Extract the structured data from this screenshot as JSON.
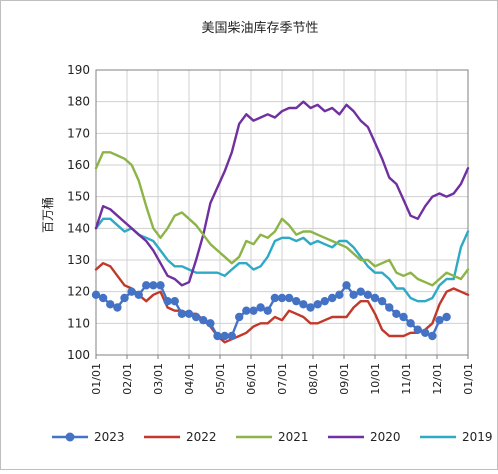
{
  "chart_data": {
    "type": "line",
    "title": "美国柴油库存季节性",
    "ylabel": "百万桶",
    "xlabel": "",
    "ylim": [
      100,
      190
    ],
    "yticks": [
      100,
      110,
      120,
      130,
      140,
      150,
      160,
      170,
      180,
      190
    ],
    "categories": [
      "01/01",
      "02/01",
      "03/01",
      "04/01",
      "05/01",
      "06/01",
      "07/01",
      "08/01",
      "09/01",
      "10/01",
      "11/01",
      "12/01",
      "01/01"
    ],
    "grid": "both",
    "legend": "bottom",
    "series": [
      {
        "name": "2023",
        "color": "#4472c4",
        "marker": "circle",
        "x": [
          0,
          0.23,
          0.46,
          0.69,
          0.92,
          1.15,
          1.38,
          1.62,
          1.85,
          2.08,
          2.31,
          2.54,
          2.77,
          3.0,
          3.23,
          3.46,
          3.69,
          3.92,
          4.15,
          4.38,
          4.62,
          4.85,
          5.08,
          5.31,
          5.54,
          5.77,
          6.0,
          6.23,
          6.46,
          6.69,
          6.92,
          7.15,
          7.38,
          7.62,
          7.85,
          8.08,
          8.31,
          8.54,
          8.77,
          9.0,
          9.23,
          9.46,
          9.69,
          9.92,
          10.15,
          10.38,
          10.62,
          10.85,
          11.08,
          11.31
        ],
        "y": [
          119,
          118,
          116,
          115,
          118,
          120,
          119,
          122,
          122,
          122,
          117,
          117,
          113,
          113,
          112,
          111,
          110,
          106,
          106,
          106,
          112,
          114,
          114,
          115,
          114,
          118,
          118,
          118,
          117,
          116,
          115,
          116,
          117,
          118,
          119,
          122,
          119,
          120,
          119,
          118,
          117,
          115,
          113,
          112,
          110,
          108,
          107,
          106,
          111,
          112
        ]
      },
      {
        "name": "2022",
        "color": "#c0392b",
        "marker": "none",
        "x": [
          0,
          0.23,
          0.46,
          0.69,
          0.92,
          1.15,
          1.38,
          1.62,
          1.85,
          2.08,
          2.31,
          2.54,
          2.77,
          3.0,
          3.23,
          3.46,
          3.69,
          3.92,
          4.15,
          4.38,
          4.62,
          4.85,
          5.08,
          5.31,
          5.54,
          5.77,
          6.0,
          6.23,
          6.46,
          6.69,
          6.92,
          7.15,
          7.38,
          7.62,
          7.85,
          8.08,
          8.31,
          8.54,
          8.77,
          9.0,
          9.23,
          9.46,
          9.69,
          9.92,
          10.15,
          10.38,
          10.62,
          10.85,
          11.08,
          11.31,
          11.54,
          11.77,
          12.0
        ],
        "y": [
          127,
          129,
          128,
          125,
          122,
          121,
          119,
          117,
          119,
          120,
          115,
          114,
          114,
          113,
          113,
          111,
          109,
          106,
          104,
          105,
          106,
          107,
          109,
          110,
          110,
          112,
          111,
          114,
          113,
          112,
          110,
          110,
          111,
          112,
          112,
          112,
          115,
          117,
          117,
          113,
          108,
          106,
          106,
          106,
          107,
          107,
          108,
          110,
          116,
          120,
          121,
          120,
          119
        ]
      },
      {
        "name": "2021",
        "color": "#8cb447",
        "marker": "none",
        "x": [
          0,
          0.23,
          0.46,
          0.69,
          0.92,
          1.15,
          1.38,
          1.62,
          1.85,
          2.08,
          2.31,
          2.54,
          2.77,
          3.0,
          3.23,
          3.46,
          3.69,
          3.92,
          4.15,
          4.38,
          4.62,
          4.85,
          5.08,
          5.31,
          5.54,
          5.77,
          6.0,
          6.23,
          6.46,
          6.69,
          6.92,
          7.15,
          7.38,
          7.62,
          7.85,
          8.08,
          8.31,
          8.54,
          8.77,
          9.0,
          9.23,
          9.46,
          9.69,
          9.92,
          10.15,
          10.38,
          10.62,
          10.85,
          11.08,
          11.31,
          11.54,
          11.77,
          12.0
        ],
        "y": [
          159,
          164,
          164,
          163,
          162,
          160,
          155,
          147,
          140,
          137,
          140,
          144,
          145,
          143,
          141,
          138,
          135,
          133,
          131,
          129,
          131,
          136,
          135,
          138,
          137,
          139,
          143,
          141,
          138,
          139,
          139,
          138,
          137,
          136,
          135,
          134,
          132,
          130,
          130,
          128,
          129,
          130,
          126,
          125,
          126,
          124,
          123,
          122,
          124,
          126,
          125,
          124,
          127
        ]
      },
      {
        "name": "2020",
        "color": "#7030a0",
        "marker": "none",
        "x": [
          0,
          0.23,
          0.46,
          0.69,
          0.92,
          1.15,
          1.38,
          1.62,
          1.85,
          2.08,
          2.31,
          2.54,
          2.77,
          3.0,
          3.23,
          3.46,
          3.69,
          3.92,
          4.15,
          4.38,
          4.62,
          4.85,
          5.08,
          5.31,
          5.54,
          5.77,
          6.0,
          6.23,
          6.46,
          6.69,
          6.92,
          7.15,
          7.38,
          7.62,
          7.85,
          8.08,
          8.31,
          8.54,
          8.77,
          9.0,
          9.23,
          9.46,
          9.69,
          9.92,
          10.15,
          10.38,
          10.62,
          10.85,
          11.08,
          11.31,
          11.54,
          11.77,
          12.0
        ],
        "y": [
          140,
          147,
          146,
          144,
          142,
          140,
          138,
          136,
          133,
          129,
          125,
          124,
          122,
          123,
          130,
          138,
          148,
          153,
          158,
          164,
          173,
          176,
          174,
          175,
          176,
          175,
          177,
          178,
          178,
          180,
          178,
          179,
          177,
          178,
          176,
          179,
          177,
          174,
          172,
          167,
          162,
          156,
          154,
          149,
          144,
          143,
          147,
          150,
          151,
          150,
          151,
          154,
          159
        ]
      },
      {
        "name": "2019",
        "color": "#2eaac6",
        "marker": "none",
        "x": [
          0,
          0.23,
          0.46,
          0.69,
          0.92,
          1.15,
          1.38,
          1.62,
          1.85,
          2.08,
          2.31,
          2.54,
          2.77,
          3.0,
          3.23,
          3.46,
          3.69,
          3.92,
          4.15,
          4.38,
          4.62,
          4.85,
          5.08,
          5.31,
          5.54,
          5.77,
          6.0,
          6.23,
          6.46,
          6.69,
          6.92,
          7.15,
          7.38,
          7.62,
          7.85,
          8.08,
          8.31,
          8.54,
          8.77,
          9.0,
          9.23,
          9.46,
          9.69,
          9.92,
          10.15,
          10.38,
          10.62,
          10.85,
          11.08,
          11.31,
          11.54,
          11.77,
          12.0
        ],
        "y": [
          140,
          143,
          143,
          141,
          139,
          140,
          138,
          137,
          136,
          133,
          130,
          128,
          128,
          127,
          126,
          126,
          126,
          126,
          125,
          127,
          129,
          129,
          127,
          128,
          131,
          136,
          137,
          137,
          136,
          137,
          135,
          136,
          135,
          134,
          136,
          136,
          134,
          131,
          128,
          126,
          126,
          124,
          121,
          121,
          118,
          117,
          117,
          118,
          122,
          124,
          124,
          134,
          139
        ]
      }
    ]
  }
}
